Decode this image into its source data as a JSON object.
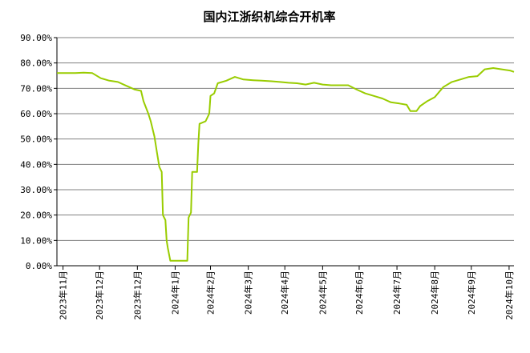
{
  "chart_data": {
    "type": "line",
    "title": "国内江浙织机综合开机率",
    "xlabel": "",
    "ylabel": "",
    "ylim": [
      0,
      90
    ],
    "xlim": [
      "2023-10-27",
      "2024-11-05"
    ],
    "y_ticks": [
      {
        "value": 0,
        "label": "0.00%"
      },
      {
        "value": 10,
        "label": "10.00%"
      },
      {
        "value": 20,
        "label": "20.00%"
      },
      {
        "value": 30,
        "label": "30.00%"
      },
      {
        "value": 40,
        "label": "40.00%"
      },
      {
        "value": 50,
        "label": "50.00%"
      },
      {
        "value": 60,
        "label": "60.00%"
      },
      {
        "value": 70,
        "label": "70.00%"
      },
      {
        "value": 80,
        "label": "80.00%"
      },
      {
        "value": 90,
        "label": "90.00%"
      }
    ],
    "x_ticks": [
      {
        "date": "2023-11-01",
        "label": "2023年11月"
      },
      {
        "date": "2023-12-01",
        "label": "2023年12月"
      },
      {
        "date": "2024-01-01",
        "label": "2023年12月"
      },
      {
        "date": "2024-02-01",
        "label": "2024年1月"
      },
      {
        "date": "2024-03-01",
        "label": "2024年2月"
      },
      {
        "date": "2024-04-01",
        "label": "2024年3月"
      },
      {
        "date": "2024-05-01",
        "label": "2024年4月"
      },
      {
        "date": "2024-06-01",
        "label": "2024年5月"
      },
      {
        "date": "2024-07-01",
        "label": "2024年6月"
      },
      {
        "date": "2024-08-01",
        "label": "2024年7月"
      },
      {
        "date": "2024-09-01",
        "label": "2024年8月"
      },
      {
        "date": "2024-10-01",
        "label": "2024年9月"
      },
      {
        "date": "2024-11-01",
        "label": "2024年10月"
      }
    ],
    "grid": {
      "horizontal": true,
      "vertical": false
    },
    "line_color": "#99cc00",
    "grid_color": "#808080",
    "series": [
      {
        "name": "",
        "points": [
          [
            "2023-10-27",
            76
          ],
          [
            "2023-11-04",
            76
          ],
          [
            "2023-11-11",
            76
          ],
          [
            "2023-11-18",
            76.2
          ],
          [
            "2023-11-25",
            76
          ],
          [
            "2023-12-02",
            74
          ],
          [
            "2023-12-09",
            73
          ],
          [
            "2023-12-16",
            72.5
          ],
          [
            "2023-12-23",
            71
          ],
          [
            "2023-12-30",
            69.5
          ],
          [
            "2024-01-04",
            69
          ],
          [
            "2024-01-06",
            65
          ],
          [
            "2024-01-10",
            60
          ],
          [
            "2024-01-12",
            57
          ],
          [
            "2024-01-15",
            51
          ],
          [
            "2024-01-17",
            45
          ],
          [
            "2024-01-19",
            39
          ],
          [
            "2024-01-21",
            37
          ],
          [
            "2024-01-22",
            20
          ],
          [
            "2024-01-24",
            18
          ],
          [
            "2024-01-25",
            10
          ],
          [
            "2024-01-26",
            7
          ],
          [
            "2024-01-28",
            2
          ],
          [
            "2024-02-06",
            2
          ],
          [
            "2024-02-11",
            2
          ],
          [
            "2024-02-12",
            19
          ],
          [
            "2024-02-14",
            21
          ],
          [
            "2024-02-15",
            37
          ],
          [
            "2024-02-19",
            37
          ],
          [
            "2024-02-20",
            48
          ],
          [
            "2024-02-21",
            56
          ],
          [
            "2024-02-26",
            57
          ],
          [
            "2024-02-29",
            60
          ],
          [
            "2024-03-01",
            67
          ],
          [
            "2024-03-04",
            68
          ],
          [
            "2024-03-07",
            72
          ],
          [
            "2024-03-14",
            73
          ],
          [
            "2024-03-21",
            74.5
          ],
          [
            "2024-03-28",
            73.5
          ],
          [
            "2024-04-05",
            73.2
          ],
          [
            "2024-04-12",
            73
          ],
          [
            "2024-04-20",
            72.8
          ],
          [
            "2024-04-27",
            72.5
          ],
          [
            "2024-05-04",
            72.2
          ],
          [
            "2024-05-11",
            72
          ],
          [
            "2024-05-18",
            71.5
          ],
          [
            "2024-05-25",
            72.2
          ],
          [
            "2024-06-01",
            71.5
          ],
          [
            "2024-06-08",
            71.2
          ],
          [
            "2024-06-15",
            71.2
          ],
          [
            "2024-06-22",
            71.2
          ],
          [
            "2024-06-29",
            69.5
          ],
          [
            "2024-07-06",
            68
          ],
          [
            "2024-07-13",
            67
          ],
          [
            "2024-07-20",
            66
          ],
          [
            "2024-07-27",
            64.5
          ],
          [
            "2024-08-03",
            64
          ],
          [
            "2024-08-09",
            63.5
          ],
          [
            "2024-08-12",
            61
          ],
          [
            "2024-08-17",
            61
          ],
          [
            "2024-08-20",
            63
          ],
          [
            "2024-08-26",
            65
          ],
          [
            "2024-09-01",
            66.5
          ],
          [
            "2024-09-08",
            70.5
          ],
          [
            "2024-09-15",
            72.5
          ],
          [
            "2024-09-22",
            73.5
          ],
          [
            "2024-09-29",
            74.5
          ],
          [
            "2024-10-06",
            74.8
          ],
          [
            "2024-10-12",
            77.5
          ],
          [
            "2024-10-19",
            78
          ],
          [
            "2024-10-26",
            77.5
          ],
          [
            "2024-11-02",
            77
          ],
          [
            "2024-11-05",
            76.5
          ]
        ]
      }
    ]
  }
}
